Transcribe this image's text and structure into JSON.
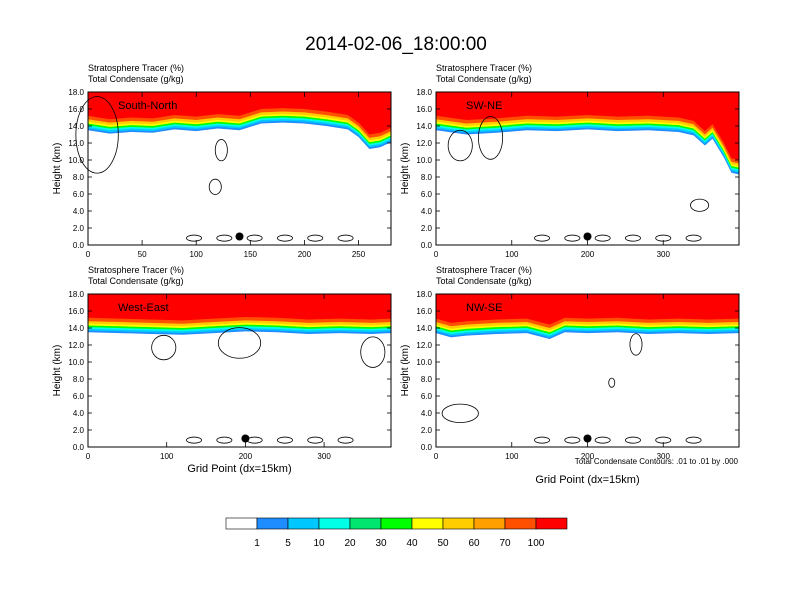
{
  "title": "2014-02-06_18:00:00",
  "chart_data": [
    {
      "type": "heatmap",
      "label": "South-North",
      "title_line1": "Stratosphere Tracer   (%)",
      "title_line2": "Total Condensate   (g/kg)",
      "ylabel": "Height (km)",
      "xlabel": "",
      "xlim": [
        0,
        280
      ],
      "ylim": [
        0,
        18
      ],
      "xticks": [
        "0",
        "50",
        "100",
        "150",
        "200",
        "250"
      ],
      "xtick_values": [
        0,
        50,
        100,
        150,
        200,
        250
      ],
      "yticks": [
        "0.0",
        "2.0",
        "4.0",
        "6.0",
        "8.0",
        "10.0",
        "12.0",
        "14.0",
        "16.0",
        "18.0"
      ],
      "tracer_boundary_km": [
        [
          0,
          15.4
        ],
        [
          20,
          15.0
        ],
        [
          40,
          15.2
        ],
        [
          60,
          15.1
        ],
        [
          80,
          15.5
        ],
        [
          100,
          15.3
        ],
        [
          120,
          15.6
        ],
        [
          140,
          15.4
        ],
        [
          160,
          16.2
        ],
        [
          180,
          16.3
        ],
        [
          200,
          16.2
        ],
        [
          220,
          15.9
        ],
        [
          240,
          15.5
        ],
        [
          250,
          14.6
        ],
        [
          260,
          13.2
        ],
        [
          270,
          13.4
        ],
        [
          280,
          14.0
        ]
      ],
      "marker": [
        140,
        1.0
      ]
    },
    {
      "type": "heatmap",
      "label": "SW-NE",
      "title_line1": "Stratosphere Tracer   (%)",
      "title_line2": "Total Condensate   (g/kg)",
      "ylabel": "Height (km)",
      "xlabel": "",
      "xlim": [
        0,
        400
      ],
      "ylim": [
        0,
        18
      ],
      "xticks": [
        "0",
        "100",
        "200",
        "300"
      ],
      "xtick_values": [
        0,
        100,
        200,
        300
      ],
      "yticks": [
        "0.0",
        "2.0",
        "4.0",
        "6.0",
        "8.0",
        "10.0",
        "12.0",
        "14.0",
        "16.0",
        "18.0"
      ],
      "tracer_boundary_km": [
        [
          0,
          15.4
        ],
        [
          40,
          14.9
        ],
        [
          80,
          15.1
        ],
        [
          120,
          15.4
        ],
        [
          160,
          15.3
        ],
        [
          200,
          15.5
        ],
        [
          240,
          15.3
        ],
        [
          280,
          15.4
        ],
        [
          320,
          15.2
        ],
        [
          340,
          14.8
        ],
        [
          355,
          13.6
        ],
        [
          365,
          14.4
        ],
        [
          380,
          12.2
        ],
        [
          390,
          10.4
        ],
        [
          400,
          10.2
        ]
      ],
      "marker": [
        200,
        1.0
      ]
    },
    {
      "type": "heatmap",
      "label": "West-East",
      "title_line1": "Stratosphere Tracer   (%)",
      "title_line2": "Total Condensate   (g/kg)",
      "ylabel": "Height (km)",
      "xlabel": "Grid Point (dx=15km)",
      "xlim": [
        0,
        385
      ],
      "ylim": [
        0,
        18
      ],
      "xticks": [
        "0",
        "100",
        "200",
        "300"
      ],
      "xtick_values": [
        0,
        100,
        200,
        300
      ],
      "yticks": [
        "0.0",
        "2.0",
        "4.0",
        "6.0",
        "8.0",
        "10.0",
        "12.0",
        "14.0",
        "16.0",
        "18.0"
      ],
      "tracer_boundary_km": [
        [
          0,
          15.4
        ],
        [
          40,
          15.3
        ],
        [
          80,
          15.2
        ],
        [
          120,
          15.1
        ],
        [
          160,
          15.3
        ],
        [
          200,
          15.5
        ],
        [
          240,
          15.4
        ],
        [
          280,
          15.2
        ],
        [
          320,
          15.3
        ],
        [
          360,
          15.2
        ],
        [
          385,
          15.3
        ]
      ],
      "marker": [
        200,
        1.0
      ]
    },
    {
      "type": "heatmap",
      "label": "NW-SE",
      "title_line1": "Stratosphere Tracer   (%)",
      "title_line2": "Total Condensate   (g/kg)",
      "ylabel": "Height (km)",
      "xlabel": "Grid Point (dx=15km)",
      "xlim": [
        0,
        400
      ],
      "ylim": [
        0,
        18
      ],
      "xticks": [
        "0",
        "100",
        "200",
        "300"
      ],
      "xtick_values": [
        0,
        100,
        200,
        300
      ],
      "yticks": [
        "0.0",
        "2.0",
        "4.0",
        "6.0",
        "8.0",
        "10.0",
        "12.0",
        "14.0",
        "16.0",
        "18.0"
      ],
      "tracer_boundary_km": [
        [
          0,
          15.3
        ],
        [
          20,
          14.8
        ],
        [
          40,
          15.0
        ],
        [
          80,
          15.2
        ],
        [
          120,
          15.3
        ],
        [
          150,
          14.6
        ],
        [
          170,
          15.4
        ],
        [
          200,
          15.3
        ],
        [
          240,
          15.4
        ],
        [
          280,
          15.2
        ],
        [
          320,
          15.3
        ],
        [
          360,
          15.2
        ],
        [
          400,
          15.3
        ]
      ],
      "marker": [
        200,
        1.0
      ],
      "contour_note": "Total Condensate Contours: .01 to .01 by .000"
    }
  ],
  "colorbar": {
    "labels": [
      "1",
      "5",
      "10",
      "20",
      "30",
      "40",
      "50",
      "60",
      "70",
      "100"
    ],
    "colors": [
      "#ffffff",
      "#1f8cff",
      "#00c8ff",
      "#00ffe6",
      "#00e66e",
      "#00ff00",
      "#a0e632",
      "#ffff00",
      "#ffcd00",
      "#ffa000",
      "#ff5000",
      "#ff0000"
    ]
  }
}
